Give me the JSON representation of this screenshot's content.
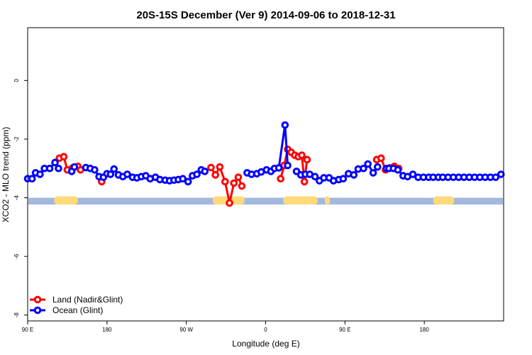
{
  "chart_data": {
    "type": "line",
    "title": "20S-15S December (Ver 9)   2014-09-06 to 2018-12-31",
    "xlabel": "Longitude (deg E)",
    "ylabel": "XCO2 - MLO trend (ppm)",
    "xlim": [
      90,
      630
    ],
    "ylim": [
      -8.2,
      1.8
    ],
    "x_ticks": [
      {
        "value": 90,
        "label": "90 E"
      },
      {
        "value": 180,
        "label": "180"
      },
      {
        "value": 270,
        "label": "90 W"
      },
      {
        "value": 360,
        "label": "0"
      },
      {
        "value": 450,
        "label": "90 E"
      },
      {
        "value": 540,
        "label": "180"
      }
    ],
    "y_ticks": [
      {
        "value": 0,
        "label": "0"
      },
      {
        "value": -2,
        "label": "-2"
      },
      {
        "value": -4,
        "label": "-4"
      },
      {
        "value": -6,
        "label": "-6"
      },
      {
        "value": -8,
        "label": "-8"
      }
    ],
    "grid": false,
    "legend_position": "bottom-left",
    "colors": {
      "land": "#ff0000",
      "ocean": "#0000ff",
      "land_mask": "#ffd97a",
      "ocean_mask": "#a3b9dc"
    },
    "series": [
      {
        "name": "Land (Nadir&Glint)",
        "color": "#ff0000",
        "x": [
          126,
          131,
          135,
          141,
          147,
          150,
          174,
          298,
          303,
          308,
          314,
          319,
          324,
          329,
          333,
          336,
          377,
          381,
          385,
          389,
          393,
          397,
          401,
          404,
          407,
          486,
          491,
          496,
          501,
          506,
          511,
          516
        ],
        "y": [
          -2.65,
          -2.6,
          -3.05,
          -2.98,
          -2.93,
          -3.05,
          -3.45,
          -2.97,
          -3.22,
          -2.95,
          -3.45,
          -4.18,
          -3.5,
          -3.3,
          -3.6,
          null,
          -3.35,
          -2.9,
          -2.35,
          -2.45,
          -2.55,
          -2.6,
          -2.55,
          -3.45,
          -2.7,
          -2.7,
          -2.65,
          -3.05,
          -2.98,
          -2.93,
          -3.0,
          null
        ]
      },
      {
        "name": "Ocean (Glint)",
        "color": "#0000ff",
        "x": [
          90,
          95,
          99,
          104,
          109,
          115,
          121,
          125,
          140,
          143,
          156,
          161,
          166,
          171,
          176,
          180,
          184,
          188,
          193,
          198,
          203,
          209,
          214,
          219,
          224,
          229,
          235,
          240,
          246,
          251,
          256,
          261,
          266,
          272,
          277,
          282,
          287,
          291,
          339,
          344,
          350,
          355,
          361,
          366,
          370,
          375,
          382,
          385,
          395,
          400,
          405,
          410,
          416,
          421,
          426,
          432,
          437,
          443,
          448,
          454,
          460,
          465,
          471,
          476,
          482,
          487,
          497,
          500,
          505,
          510,
          516,
          521,
          527,
          533,
          539,
          545,
          550,
          556,
          561,
          567,
          573,
          579,
          585,
          591,
          597,
          603,
          609,
          615,
          621,
          627
        ],
        "y": [
          -3.35,
          -3.35,
          -3.15,
          -3.2,
          -3.0,
          -3.0,
          -2.8,
          -3.0,
          -3.1,
          -2.95,
          -2.97,
          -3.0,
          -3.05,
          -3.28,
          -3.3,
          -3.18,
          -3.2,
          -3.02,
          -3.22,
          -3.28,
          -3.2,
          -3.3,
          -3.32,
          -3.28,
          -3.25,
          -3.35,
          -3.3,
          -3.38,
          -3.4,
          -3.42,
          -3.4,
          -3.38,
          -3.35,
          -3.45,
          -3.25,
          -3.2,
          -3.05,
          -3.1,
          -3.15,
          -3.2,
          -3.18,
          -3.12,
          -3.05,
          -3.1,
          -3.0,
          -2.98,
          -1.52,
          -2.9,
          -3.1,
          -3.22,
          -3.2,
          -3.2,
          -3.28,
          -3.42,
          -3.32,
          -3.32,
          -3.42,
          -3.38,
          -3.35,
          -3.18,
          -3.22,
          -3.02,
          -3.0,
          -2.85,
          -3.15,
          -2.95,
          -3.0,
          -3.0,
          -3.0,
          -3.05,
          -3.25,
          -3.28,
          -3.2,
          -3.3,
          -3.3,
          -3.3,
          -3.3,
          -3.3,
          -3.3,
          -3.3,
          -3.3,
          -3.3,
          -3.3,
          -3.3,
          -3.3,
          -3.3,
          -3.3,
          -3.3,
          -3.3,
          -3.2
        ]
      }
    ],
    "land_segments": [
      [
        120,
        147
      ],
      [
        300,
        336
      ],
      [
        380,
        419
      ],
      [
        427,
        433
      ],
      [
        550,
        574
      ]
    ]
  }
}
